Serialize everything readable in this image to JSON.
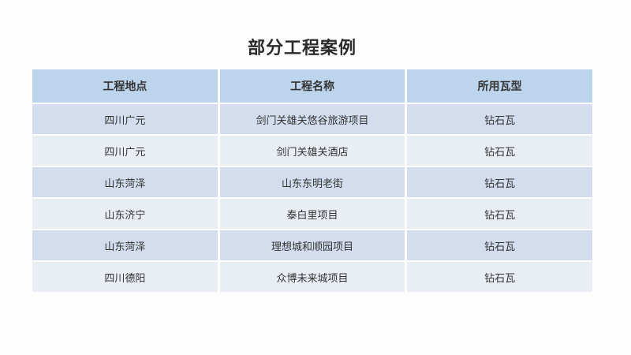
{
  "slide": {
    "title": "部分工程案例"
  },
  "table": {
    "columns": [
      "工程地点",
      "工程名称",
      "所用瓦型"
    ],
    "rows": [
      [
        "四川广元",
        "剑门关雄关悠谷旅游项目",
        "钻石瓦"
      ],
      [
        "四川广元",
        "剑门关雄关酒店",
        "钻石瓦"
      ],
      [
        "山东菏泽",
        "山东东明老街",
        "钻石瓦"
      ],
      [
        "山东济宁",
        "泰白里项目",
        "钻石瓦"
      ],
      [
        "山东菏泽",
        "理想城和顺园项目",
        "钻石瓦"
      ],
      [
        "四川德阳",
        "众博未来城项目",
        "钻石瓦"
      ]
    ]
  },
  "colors": {
    "background": "#fdfdfd",
    "title_text": "#2b2b2b",
    "text": "#333333",
    "header_bg": "#bcd5ec",
    "row_odd_bg": "#d3ddee",
    "row_even_bg": "#e9eef5"
  }
}
